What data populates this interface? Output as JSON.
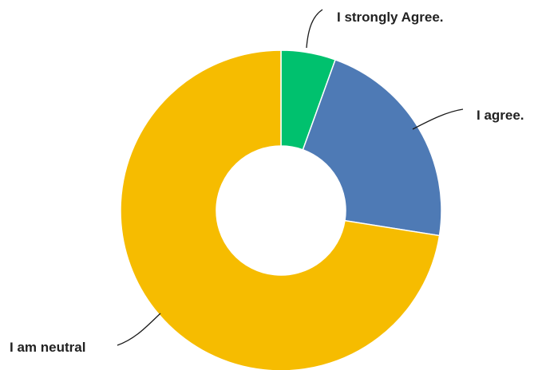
{
  "chart_data": {
    "type": "pie",
    "subtype": "donut",
    "title": "",
    "legend": "none",
    "slices": [
      {
        "label": "I strongly Agree.",
        "value": 5.5,
        "color": "#00C16E"
      },
      {
        "label": "I agree.",
        "value": 22.0,
        "color": "#4E7AB5"
      },
      {
        "label": "I am neutral",
        "value": 72.5,
        "color": "#F6BC00"
      }
    ]
  }
}
